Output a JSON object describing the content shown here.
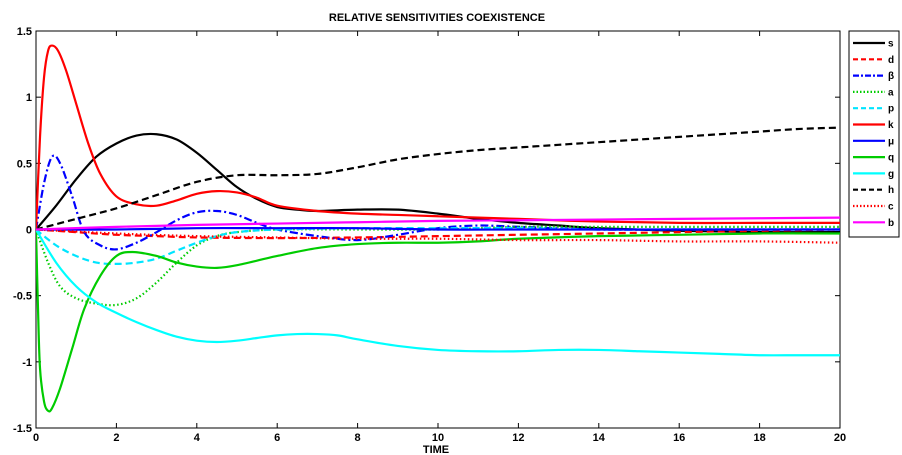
{
  "chart_data": {
    "type": "line",
    "title": "RELATIVE SENSITIVITIES COEXISTENCE",
    "xlabel": "TIME",
    "ylabel": "",
    "xlim": [
      0,
      20
    ],
    "ylim": [
      -1.5,
      1.5
    ],
    "xticks": [
      "0",
      "2",
      "4",
      "6",
      "8",
      "10",
      "12",
      "14",
      "16",
      "18",
      "20"
    ],
    "yticks": [
      "1.5",
      "1",
      "0.5",
      "0",
      "-0.5",
      "-1",
      "-1.5"
    ],
    "grid": false,
    "legend_position": "right",
    "series": [
      {
        "name": "s",
        "color": "#000000",
        "dash": "solid",
        "points": [
          [
            0,
            0
          ],
          [
            0.5,
            0.18
          ],
          [
            1,
            0.38
          ],
          [
            1.5,
            0.55
          ],
          [
            2,
            0.65
          ],
          [
            2.5,
            0.71
          ],
          [
            3,
            0.72
          ],
          [
            3.5,
            0.68
          ],
          [
            4,
            0.58
          ],
          [
            4.5,
            0.45
          ],
          [
            5,
            0.32
          ],
          [
            5.5,
            0.23
          ],
          [
            6,
            0.17
          ],
          [
            6.5,
            0.15
          ],
          [
            7,
            0.14
          ],
          [
            8,
            0.15
          ],
          [
            9,
            0.15
          ],
          [
            10,
            0.12
          ],
          [
            11,
            0.08
          ],
          [
            12,
            0.05
          ],
          [
            13,
            0.03
          ],
          [
            14,
            0.01
          ],
          [
            16,
            -0.01
          ],
          [
            18,
            -0.02
          ],
          [
            20,
            -0.02
          ]
        ]
      },
      {
        "name": "d",
        "color": "#ff0000",
        "dash": "dashed",
        "points": [
          [
            0,
            0
          ],
          [
            1,
            -0.02
          ],
          [
            2,
            -0.04
          ],
          [
            3,
            -0.05
          ],
          [
            4,
            -0.06
          ],
          [
            6,
            -0.065
          ],
          [
            8,
            -0.06
          ],
          [
            10,
            -0.05
          ],
          [
            12,
            -0.04
          ],
          [
            14,
            -0.03
          ],
          [
            16,
            -0.02
          ],
          [
            18,
            -0.01
          ],
          [
            20,
            0.0
          ]
        ]
      },
      {
        "name": "β",
        "color": "#0000ff",
        "dash": "dashdot",
        "points": [
          [
            0,
            0
          ],
          [
            0.2,
            0.35
          ],
          [
            0.4,
            0.55
          ],
          [
            0.6,
            0.5
          ],
          [
            0.9,
            0.25
          ],
          [
            1.2,
            -0.02
          ],
          [
            1.6,
            -0.12
          ],
          [
            2,
            -0.15
          ],
          [
            2.5,
            -0.1
          ],
          [
            3,
            -0.02
          ],
          [
            3.5,
            0.07
          ],
          [
            4,
            0.13
          ],
          [
            4.5,
            0.14
          ],
          [
            5,
            0.11
          ],
          [
            5.5,
            0.05
          ],
          [
            6,
            0.0
          ],
          [
            7,
            -0.05
          ],
          [
            8,
            -0.08
          ],
          [
            9,
            -0.04
          ],
          [
            10,
            0.01
          ],
          [
            11,
            0.03
          ],
          [
            12,
            0.02
          ],
          [
            14,
            0.0
          ],
          [
            16,
            0.0
          ],
          [
            18,
            0.0
          ],
          [
            20,
            0.0
          ]
        ]
      },
      {
        "name": "a",
        "color": "#00cc00",
        "dash": "dotted",
        "points": [
          [
            0,
            0
          ],
          [
            0.3,
            -0.25
          ],
          [
            0.6,
            -0.43
          ],
          [
            1,
            -0.52
          ],
          [
            1.5,
            -0.56
          ],
          [
            2,
            -0.57
          ],
          [
            2.5,
            -0.52
          ],
          [
            3,
            -0.4
          ],
          [
            3.5,
            -0.25
          ],
          [
            4,
            -0.12
          ],
          [
            4.5,
            -0.05
          ],
          [
            5,
            -0.02
          ],
          [
            6,
            0.0
          ],
          [
            8,
            0.0
          ],
          [
            10,
            0.0
          ],
          [
            12,
            0.02
          ],
          [
            14,
            0.02
          ],
          [
            16,
            0.02
          ],
          [
            18,
            0.02
          ],
          [
            20,
            0.02
          ]
        ]
      },
      {
        "name": "p",
        "color": "#00e5ff",
        "dash": "dashed",
        "points": [
          [
            0,
            0
          ],
          [
            0.5,
            -0.12
          ],
          [
            1,
            -0.2
          ],
          [
            1.5,
            -0.25
          ],
          [
            2,
            -0.26
          ],
          [
            2.5,
            -0.25
          ],
          [
            3,
            -0.22
          ],
          [
            3.5,
            -0.16
          ],
          [
            4,
            -0.1
          ],
          [
            4.5,
            -0.05
          ],
          [
            5,
            -0.02
          ],
          [
            6,
            0.0
          ],
          [
            8,
            0.01
          ],
          [
            10,
            0.01
          ],
          [
            12,
            0.01
          ],
          [
            14,
            0.0
          ],
          [
            16,
            0.0
          ],
          [
            18,
            0.0
          ],
          [
            20,
            0.0
          ]
        ]
      },
      {
        "name": "k",
        "color": "#ff0000",
        "dash": "solid",
        "points": [
          [
            0,
            0
          ],
          [
            0.1,
            0.7
          ],
          [
            0.2,
            1.15
          ],
          [
            0.3,
            1.35
          ],
          [
            0.4,
            1.39
          ],
          [
            0.55,
            1.35
          ],
          [
            0.75,
            1.2
          ],
          [
            1,
            0.95
          ],
          [
            1.3,
            0.65
          ],
          [
            1.6,
            0.42
          ],
          [
            2,
            0.25
          ],
          [
            2.5,
            0.19
          ],
          [
            3,
            0.18
          ],
          [
            3.5,
            0.22
          ],
          [
            4,
            0.27
          ],
          [
            4.5,
            0.29
          ],
          [
            5,
            0.28
          ],
          [
            5.5,
            0.24
          ],
          [
            6,
            0.18
          ],
          [
            7,
            0.14
          ],
          [
            8,
            0.12
          ],
          [
            9,
            0.11
          ],
          [
            10,
            0.1
          ],
          [
            11,
            0.09
          ],
          [
            12,
            0.08
          ],
          [
            14,
            0.06
          ],
          [
            16,
            0.05
          ],
          [
            18,
            0.05
          ],
          [
            20,
            0.05
          ]
        ]
      },
      {
        "name": "μ",
        "color": "#0000ff",
        "dash": "solid",
        "points": [
          [
            0,
            0
          ],
          [
            2,
            0.0
          ],
          [
            4,
            0.01
          ],
          [
            6,
            0.01
          ],
          [
            8,
            0.01
          ],
          [
            10,
            0.0
          ],
          [
            12,
            0.0
          ],
          [
            14,
            0.0
          ],
          [
            16,
            0.0
          ],
          [
            18,
            0.0
          ],
          [
            20,
            0.0
          ]
        ]
      },
      {
        "name": "q",
        "color": "#00cc00",
        "dash": "solid",
        "points": [
          [
            0,
            0
          ],
          [
            0.05,
            -0.6
          ],
          [
            0.1,
            -1.05
          ],
          [
            0.2,
            -1.3
          ],
          [
            0.3,
            -1.37
          ],
          [
            0.4,
            -1.35
          ],
          [
            0.6,
            -1.2
          ],
          [
            0.9,
            -0.9
          ],
          [
            1.2,
            -0.6
          ],
          [
            1.6,
            -0.35
          ],
          [
            2,
            -0.2
          ],
          [
            2.4,
            -0.17
          ],
          [
            3,
            -0.2
          ],
          [
            3.5,
            -0.25
          ],
          [
            4,
            -0.28
          ],
          [
            4.5,
            -0.29
          ],
          [
            5,
            -0.27
          ],
          [
            6,
            -0.2
          ],
          [
            7,
            -0.14
          ],
          [
            8,
            -0.11
          ],
          [
            9,
            -0.1
          ],
          [
            10,
            -0.1
          ],
          [
            11,
            -0.09
          ],
          [
            12,
            -0.07
          ],
          [
            14,
            -0.05
          ],
          [
            16,
            -0.04
          ],
          [
            18,
            -0.03
          ],
          [
            20,
            -0.03
          ]
        ]
      },
      {
        "name": "g",
        "color": "#00ffff",
        "dash": "solid",
        "points": [
          [
            0,
            0
          ],
          [
            0.5,
            -0.25
          ],
          [
            1,
            -0.43
          ],
          [
            1.5,
            -0.55
          ],
          [
            2,
            -0.63
          ],
          [
            2.5,
            -0.7
          ],
          [
            3,
            -0.76
          ],
          [
            3.5,
            -0.81
          ],
          [
            4,
            -0.84
          ],
          [
            4.5,
            -0.85
          ],
          [
            5,
            -0.84
          ],
          [
            5.5,
            -0.82
          ],
          [
            6,
            -0.8
          ],
          [
            6.5,
            -0.79
          ],
          [
            7,
            -0.79
          ],
          [
            7.5,
            -0.8
          ],
          [
            8,
            -0.83
          ],
          [
            9,
            -0.88
          ],
          [
            10,
            -0.91
          ],
          [
            11,
            -0.92
          ],
          [
            12,
            -0.92
          ],
          [
            13,
            -0.91
          ],
          [
            14,
            -0.91
          ],
          [
            15,
            -0.92
          ],
          [
            16,
            -0.93
          ],
          [
            17,
            -0.94
          ],
          [
            18,
            -0.95
          ],
          [
            19,
            -0.95
          ],
          [
            20,
            -0.95
          ]
        ]
      },
      {
        "name": "h",
        "color": "#000000",
        "dash": "dashed",
        "points": [
          [
            0,
            0
          ],
          [
            1,
            0.08
          ],
          [
            2,
            0.16
          ],
          [
            3,
            0.26
          ],
          [
            4,
            0.36
          ],
          [
            5,
            0.41
          ],
          [
            6,
            0.41
          ],
          [
            7,
            0.42
          ],
          [
            8,
            0.47
          ],
          [
            9,
            0.53
          ],
          [
            10,
            0.57
          ],
          [
            11,
            0.6
          ],
          [
            12,
            0.62
          ],
          [
            13,
            0.64
          ],
          [
            14,
            0.66
          ],
          [
            15,
            0.68
          ],
          [
            16,
            0.7
          ],
          [
            17,
            0.72
          ],
          [
            18,
            0.74
          ],
          [
            19,
            0.76
          ],
          [
            20,
            0.77
          ]
        ]
      },
      {
        "name": "c",
        "color": "#ff0000",
        "dash": "dotted",
        "points": [
          [
            0,
            0
          ],
          [
            2,
            -0.03
          ],
          [
            4,
            -0.05
          ],
          [
            6,
            -0.06
          ],
          [
            8,
            -0.07
          ],
          [
            10,
            -0.07
          ],
          [
            12,
            -0.08
          ],
          [
            14,
            -0.08
          ],
          [
            16,
            -0.09
          ],
          [
            18,
            -0.09
          ],
          [
            20,
            -0.1
          ]
        ]
      },
      {
        "name": "b",
        "color": "#ff00ff",
        "dash": "solid",
        "points": [
          [
            0,
            0
          ],
          [
            2,
            0.02
          ],
          [
            4,
            0.035
          ],
          [
            6,
            0.045
          ],
          [
            8,
            0.055
          ],
          [
            10,
            0.065
          ],
          [
            12,
            0.07
          ],
          [
            14,
            0.075
          ],
          [
            16,
            0.08
          ],
          [
            18,
            0.085
          ],
          [
            20,
            0.09
          ]
        ]
      }
    ]
  }
}
